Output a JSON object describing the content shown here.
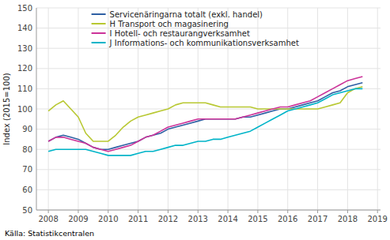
{
  "chart_data": {
    "type": "line",
    "ylabel": "Index (2015=100)",
    "source": "Källa: Statistikcentralen",
    "x": [
      2008.0,
      2008.25,
      2008.5,
      2008.75,
      2009.0,
      2009.25,
      2009.5,
      2009.75,
      2010.0,
      2010.25,
      2010.5,
      2010.75,
      2011.0,
      2011.25,
      2011.5,
      2011.75,
      2012.0,
      2012.25,
      2012.5,
      2012.75,
      2013.0,
      2013.25,
      2013.5,
      2013.75,
      2014.0,
      2014.25,
      2014.5,
      2014.75,
      2015.0,
      2015.25,
      2015.5,
      2015.75,
      2016.0,
      2016.25,
      2016.5,
      2016.75,
      2017.0,
      2017.25,
      2017.5,
      2017.75,
      2018.0,
      2018.25,
      2018.5
    ],
    "series": [
      {
        "name": "Servicenäringarna totalt (exkl. handel)",
        "color": "#2e5fa3",
        "values": [
          84,
          86,
          87,
          86,
          85,
          83,
          81,
          80,
          80,
          81,
          82,
          83,
          84,
          86,
          87,
          88,
          90,
          91,
          92,
          93,
          94,
          95,
          95,
          95,
          95,
          95,
          96,
          96,
          97,
          98,
          99,
          100,
          100,
          101,
          102,
          103,
          104,
          106,
          108,
          109,
          111,
          112,
          113
        ]
      },
      {
        "name": "H Transport och magasinering",
        "color": "#b8c832",
        "values": [
          99,
          102,
          104,
          100,
          96,
          88,
          84,
          84,
          84,
          87,
          91,
          94,
          96,
          97,
          98,
          99,
          100,
          102,
          103,
          103,
          103,
          103,
          102,
          101,
          101,
          101,
          101,
          101,
          100,
          100,
          100,
          100,
          100,
          100,
          100,
          100,
          100,
          101,
          102,
          103,
          108,
          110,
          111
        ]
      },
      {
        "name": "I Hotell- och restaurangverksamhet",
        "color": "#cc3399",
        "values": [
          84,
          86,
          86,
          85,
          84,
          83,
          81,
          80,
          79,
          80,
          81,
          82,
          84,
          86,
          87,
          89,
          91,
          92,
          93,
          94,
          95,
          95,
          95,
          95,
          95,
          95,
          96,
          97,
          98,
          99,
          100,
          101,
          101,
          102,
          103,
          104,
          106,
          108,
          110,
          112,
          114,
          115,
          116
        ]
      },
      {
        "name": "J Informations- och kommunikationsverksamhet",
        "color": "#00b4c8",
        "values": [
          79,
          80,
          80,
          80,
          80,
          80,
          79,
          78,
          77,
          77,
          77,
          77,
          78,
          79,
          79,
          80,
          81,
          82,
          82,
          83,
          84,
          84,
          85,
          85,
          86,
          87,
          88,
          89,
          91,
          93,
          95,
          97,
          99,
          100,
          101,
          102,
          103,
          105,
          107,
          108,
          109,
          110,
          110
        ]
      }
    ],
    "xlim": [
      2007.6,
      2019.1
    ],
    "xticks": [
      2008,
      2009,
      2010,
      2011,
      2012,
      2013,
      2014,
      2015,
      2016,
      2017,
      2018,
      2019
    ],
    "ylim": [
      50,
      150
    ],
    "yticks": [
      50,
      60,
      70,
      80,
      90,
      100,
      110,
      120,
      130,
      140,
      150
    ],
    "grid": true,
    "legend": "top-left"
  }
}
